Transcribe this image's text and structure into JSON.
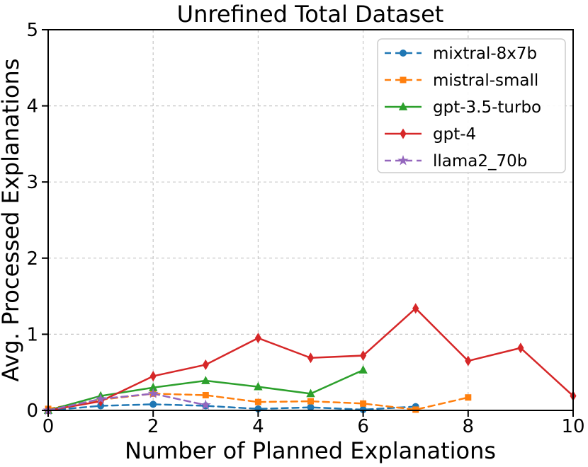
{
  "chart_data": {
    "type": "line",
    "title": "Unrefined Total Dataset",
    "xlabel": "Number of Planned Explanations",
    "ylabel": "Avg. Processed Explanations",
    "xlim": [
      0,
      10
    ],
    "ylim": [
      0,
      5
    ],
    "x_ticks": [
      0,
      2,
      4,
      6,
      8,
      10
    ],
    "y_ticks": [
      0,
      1,
      2,
      3,
      4,
      5
    ],
    "grid": true,
    "grid_color": "#c6c6c6",
    "axis_color": "#000000",
    "legend_position": "upper right",
    "legend_border_color": "#cccccc",
    "background_color": "#ffffff",
    "series": [
      {
        "name": "mixtral-8x7b",
        "color": "#1f77b4",
        "linestyle": "dashed",
        "marker": "circle",
        "x": [
          0,
          1,
          2,
          3,
          4,
          5,
          6,
          7
        ],
        "y": [
          0.0,
          0.06,
          0.08,
          0.06,
          0.02,
          0.04,
          0.01,
          0.05
        ]
      },
      {
        "name": "mistral-small",
        "color": "#ff7f0e",
        "linestyle": "dashed",
        "marker": "square",
        "x": [
          0,
          1,
          2,
          3,
          4,
          5,
          6,
          7,
          8
        ],
        "y": [
          0.02,
          0.14,
          0.22,
          0.2,
          0.11,
          0.12,
          0.09,
          0.01,
          0.17
        ]
      },
      {
        "name": "gpt-3.5-turbo",
        "color": "#2ca02c",
        "linestyle": "solid",
        "marker": "triangle",
        "x": [
          0,
          1,
          2,
          3,
          4,
          5,
          6
        ],
        "y": [
          0.0,
          0.19,
          0.3,
          0.39,
          0.31,
          0.22,
          0.53
        ]
      },
      {
        "name": "gpt-4",
        "color": "#d62728",
        "linestyle": "solid",
        "marker": "diamond",
        "x": [
          0,
          1,
          2,
          3,
          4,
          5,
          6,
          7,
          8,
          9,
          10
        ],
        "y": [
          0.0,
          0.12,
          0.45,
          0.6,
          0.95,
          0.69,
          0.72,
          1.34,
          0.65,
          0.82,
          0.19
        ]
      },
      {
        "name": "llama2_70b",
        "color": "#9467bd",
        "linestyle": "dashed",
        "marker": "star",
        "x": [
          0,
          1,
          2,
          3
        ],
        "y": [
          0.0,
          0.15,
          0.22,
          0.07
        ]
      }
    ]
  }
}
